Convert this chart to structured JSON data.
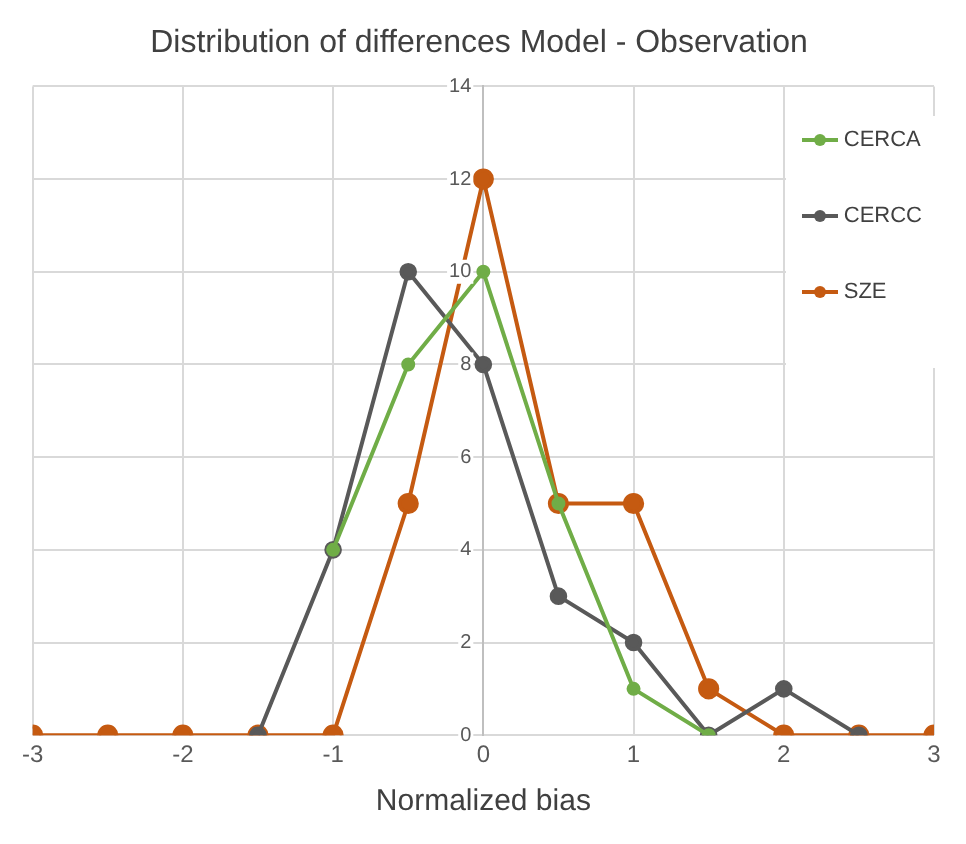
{
  "chart_data": {
    "type": "line",
    "title": "Distribution of differences Model - Observation",
    "xlabel": "Normalized bias",
    "xlim": [
      -3,
      3
    ],
    "xticks": [
      -3,
      -2,
      -1,
      0,
      1,
      2,
      3
    ],
    "ylim": [
      0,
      14
    ],
    "yticks": [
      0,
      2,
      4,
      6,
      8,
      10,
      12,
      14
    ],
    "grid": true,
    "legend": "top right",
    "marker": "circle",
    "line_style": "solid",
    "series": [
      {
        "name": "CERCA",
        "color": "#70ad47",
        "x": [
          -1,
          -0.5,
          0,
          0.5,
          1,
          1.5
        ],
        "values": [
          4,
          8,
          10,
          5,
          1,
          0
        ]
      },
      {
        "name": "CERCC",
        "color": "#595959",
        "x": [
          -1.5,
          -1,
          -0.5,
          0,
          0.5,
          1,
          1.5,
          2,
          2.5
        ],
        "values": [
          0,
          4,
          10,
          8,
          3,
          2,
          0,
          1,
          0
        ]
      },
      {
        "name": "SZE",
        "color": "#c55a11",
        "x": [
          -3,
          -2.5,
          -2,
          -1.5,
          -1,
          -0.5,
          0,
          0.5,
          1,
          1.5,
          2,
          2.5,
          3
        ],
        "values": [
          0,
          0,
          0,
          0,
          0,
          5,
          12,
          5,
          5,
          1,
          0,
          0,
          0
        ]
      }
    ]
  }
}
